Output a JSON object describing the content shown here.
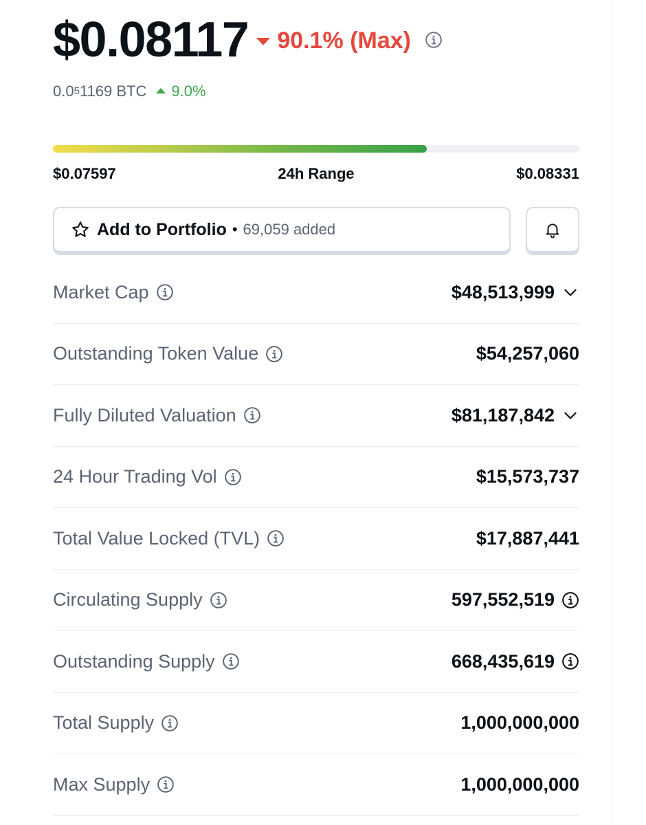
{
  "price": {
    "value": "$0.08117",
    "change": "90.1% (Max)",
    "btc_main": "0.0",
    "btc_sub": "5",
    "btc_rest": "1169 BTC",
    "btc_change": "9.0%"
  },
  "range": {
    "low": "$0.07597",
    "label": "24h Range",
    "high": "$0.08331",
    "fill_percent": 71
  },
  "portfolio": {
    "label": "Add to Portfolio",
    "separator": "•",
    "added": "69,059 added"
  },
  "stats": [
    {
      "label": "Market Cap",
      "value": "$48,513,999",
      "suffix": "chevron-down-icon"
    },
    {
      "label": "Outstanding Token Value",
      "value": "$54,257,060",
      "suffix": ""
    },
    {
      "label": "Fully Diluted Valuation",
      "value": "$81,187,842",
      "suffix": "chevron-down-icon"
    },
    {
      "label": "24 Hour Trading Vol",
      "value": "$15,573,737",
      "suffix": ""
    },
    {
      "label": "Total Value Locked (TVL)",
      "value": "$17,887,441",
      "suffix": ""
    },
    {
      "label": "Circulating Supply",
      "value": "597,552,519",
      "suffix": "info-icon"
    },
    {
      "label": "Outstanding Supply",
      "value": "668,435,619",
      "suffix": "info-icon"
    },
    {
      "label": "Total Supply",
      "value": "1,000,000,000",
      "suffix": ""
    },
    {
      "label": "Max Supply",
      "value": "1,000,000,000",
      "suffix": ""
    }
  ],
  "colors": {
    "negative": "#e5483d",
    "positive": "#3aa84a",
    "muted": "#5b6473"
  }
}
